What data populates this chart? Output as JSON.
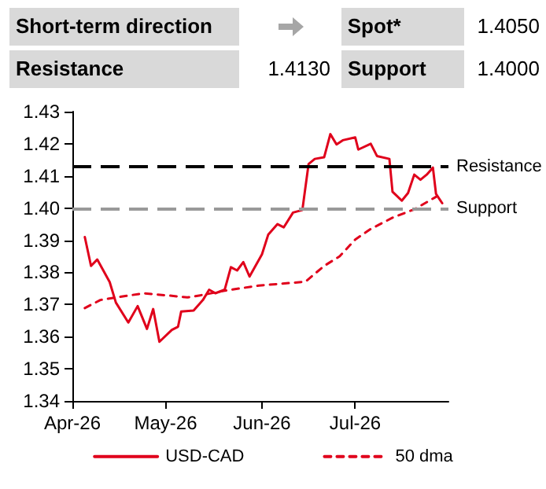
{
  "chart_data": {
    "type": "line",
    "annotations": [
      "Short-term direction",
      "Spot*",
      "1.4050",
      "Resistance",
      "1.4130",
      "Support",
      "1.4000"
    ],
    "x": [
      "2026-04-05",
      "2026-04-07",
      "2026-04-09",
      "2026-04-13",
      "2026-04-15",
      "2026-04-19",
      "2026-04-22",
      "2026-04-25",
      "2026-04-27",
      "2026-04-29",
      "2026-05-03",
      "2026-05-05",
      "2026-05-06",
      "2026-05-10",
      "2026-05-13",
      "2026-05-15",
      "2026-05-17",
      "2026-05-20",
      "2026-05-22",
      "2026-05-24",
      "2026-05-26",
      "2026-05-28",
      "2026-06-01",
      "2026-06-03",
      "2026-06-06",
      "2026-06-08",
      "2026-06-11",
      "2026-06-14",
      "2026-06-16",
      "2026-06-18",
      "2026-06-21",
      "2026-06-23",
      "2026-06-25",
      "2026-06-27",
      "2026-07-01",
      "2026-07-02",
      "2026-07-06",
      "2026-07-08",
      "2026-07-12",
      "2026-07-13",
      "2026-07-16",
      "2026-07-18",
      "2026-07-20",
      "2026-07-22",
      "2026-07-24",
      "2026-07-26",
      "2026-07-27",
      "2026-07-29"
    ],
    "series": [
      {
        "name": "USD-CAD",
        "color": "#e0001b",
        "line_style": "solid",
        "values": [
          1.391,
          1.382,
          1.384,
          1.377,
          1.3706,
          1.3644,
          1.3695,
          1.3624,
          1.3686,
          1.3584,
          1.3621,
          1.3631,
          1.3678,
          1.3681,
          1.3714,
          1.3746,
          1.3735,
          1.3746,
          1.3816,
          1.3806,
          1.3832,
          1.3787,
          1.3856,
          1.3917,
          1.395,
          1.394,
          1.3986,
          1.3994,
          1.4137,
          1.4153,
          1.4158,
          1.423,
          1.4198,
          1.4211,
          1.422,
          1.4182,
          1.42,
          1.4162,
          1.4153,
          1.4051,
          1.4023,
          1.4047,
          1.4104,
          1.4088,
          1.4104,
          1.4126,
          1.4044,
          1.4015
        ]
      },
      {
        "name": "50 dma",
        "color": "#e0001b",
        "line_style": "dashed",
        "x": [
          "2026-04-05",
          "2026-04-10",
          "2026-04-15",
          "2026-04-24",
          "2026-05-03",
          "2026-05-08",
          "2026-05-13",
          "2026-05-20",
          "2026-05-31",
          "2026-06-15",
          "2026-06-21",
          "2026-06-26",
          "2026-07-01",
          "2026-07-06",
          "2026-07-13",
          "2026-07-20",
          "2026-07-27"
        ],
        "values": [
          1.3689,
          1.3714,
          1.3722,
          1.3735,
          1.3727,
          1.3722,
          1.373,
          1.3743,
          1.3759,
          1.3771,
          1.382,
          1.385,
          1.3902,
          1.3935,
          1.397,
          1.3996,
          1.4035
        ]
      }
    ],
    "xlim": [
      "2026-04-01",
      "2026-07-31"
    ],
    "xticks": [
      {
        "value": "2026-04-01",
        "label": "Apr-26"
      },
      {
        "value": "2026-05-01",
        "label": "May-26"
      },
      {
        "value": "2026-06-01",
        "label": "Jun-26"
      },
      {
        "value": "2026-07-01",
        "label": "Jul-26"
      }
    ],
    "ylim": [
      1.34,
      1.43
    ],
    "yticks": [
      {
        "value": 1.34,
        "label": "1.34"
      },
      {
        "value": 1.35,
        "label": "1.35"
      },
      {
        "value": 1.36,
        "label": "1.36"
      },
      {
        "value": 1.37,
        "label": "1.37"
      },
      {
        "value": 1.38,
        "label": "1.38"
      },
      {
        "value": 1.39,
        "label": "1.39"
      },
      {
        "value": 1.4,
        "label": "1.40"
      },
      {
        "value": 1.41,
        "label": "1.41"
      },
      {
        "value": 1.42,
        "label": "1.42"
      },
      {
        "value": 1.43,
        "label": "1.43"
      }
    ],
    "ref_lines": [
      {
        "axis": "y",
        "value": 1.413,
        "label": "Resistance",
        "color": "#000000",
        "line_style": "dashed"
      },
      {
        "axis": "y",
        "value": 1.4,
        "label": "Support",
        "color": "#999999",
        "line_style": "dashed"
      }
    ],
    "grid": false,
    "legend": "bottom",
    "marker": "none"
  }
}
